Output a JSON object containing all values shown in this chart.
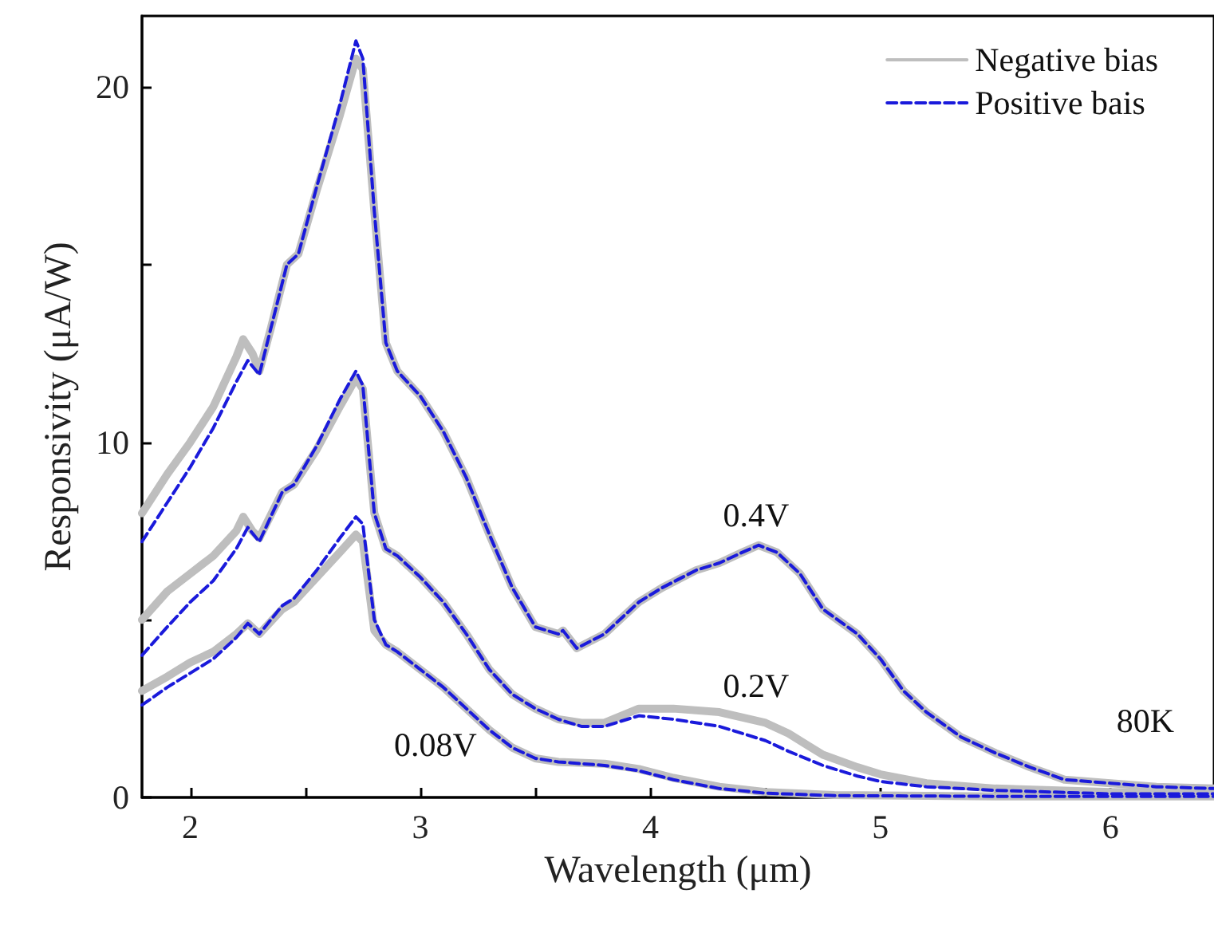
{
  "chart_data": {
    "type": "line",
    "xlabel": "Wavelength (μm)",
    "ylabel": "Responsivity (μA/W)",
    "xlim": [
      1.79,
      6.45
    ],
    "xticks": [
      2,
      {
        "value": 2.5,
        "label": null
      },
      3,
      {
        "value": 3.5,
        "label": null
      },
      4,
      {
        "value": 4.5,
        "label": null
      },
      5,
      {
        "value": 5.5,
        "label": null
      },
      6
    ],
    "ylim": [
      0,
      22
    ],
    "yticks": [
      0,
      {
        "value": 5,
        "label": null
      },
      10,
      {
        "value": 15,
        "label": null
      },
      20
    ],
    "grid": false,
    "legend": "top right",
    "marker": "none",
    "annotations": [
      "0.4V",
      "0.2V",
      "0.08V",
      "80K"
    ],
    "series": [
      {
        "name": "Negative bias",
        "color": "#bebebe",
        "line_style": "solid",
        "x": [
          1.79,
          1.9,
          2.0,
          2.1,
          2.2,
          2.23,
          2.27,
          2.3,
          2.35,
          2.42,
          2.47,
          2.55,
          2.65,
          2.72,
          2.75,
          2.8,
          2.85,
          2.9,
          3.0,
          3.1,
          3.2,
          3.3,
          3.4,
          3.5,
          3.6,
          3.62,
          3.68,
          3.8,
          3.95,
          4.05,
          4.2,
          4.3,
          4.4,
          4.47,
          4.55,
          4.65,
          4.75,
          4.9,
          5.0,
          5.1,
          5.2,
          5.35,
          5.5,
          5.65,
          5.8,
          6.0,
          6.2,
          6.45
        ],
        "values": [
          8.0,
          9.1,
          10.0,
          11.0,
          12.4,
          12.9,
          12.5,
          12.0,
          13.2,
          15.0,
          15.3,
          17.1,
          19.2,
          20.8,
          20.5,
          16.5,
          12.8,
          12.0,
          11.3,
          10.3,
          9.0,
          7.4,
          5.9,
          4.8,
          4.6,
          4.7,
          4.2,
          4.6,
          5.5,
          5.9,
          6.4,
          6.6,
          6.9,
          7.1,
          6.9,
          6.3,
          5.3,
          4.6,
          3.9,
          3.0,
          2.4,
          1.7,
          1.25,
          0.85,
          0.5,
          0.4,
          0.3,
          0.25
        ]
      },
      {
        "name": "Positive bais",
        "color": "#1a1adb",
        "line_style": "dashed",
        "x": [
          1.79,
          1.9,
          2.0,
          2.1,
          2.2,
          2.25,
          2.3,
          2.35,
          2.42,
          2.47,
          2.55,
          2.65,
          2.72,
          2.75,
          2.8,
          2.85,
          2.9,
          3.0,
          3.1,
          3.2,
          3.3,
          3.4,
          3.5,
          3.6,
          3.62,
          3.68,
          3.8,
          3.95,
          4.05,
          4.2,
          4.3,
          4.4,
          4.47,
          4.55,
          4.65,
          4.75,
          4.9,
          5.0,
          5.1,
          5.2,
          5.35,
          5.5,
          5.65,
          5.8,
          6.0,
          6.2,
          6.45
        ],
        "values": [
          7.2,
          8.3,
          9.3,
          10.4,
          11.7,
          12.3,
          11.9,
          13.2,
          15.0,
          15.3,
          17.2,
          19.5,
          21.3,
          20.8,
          16.5,
          12.8,
          12.0,
          11.3,
          10.3,
          9.0,
          7.4,
          5.9,
          4.8,
          4.6,
          4.7,
          4.2,
          4.6,
          5.5,
          5.9,
          6.4,
          6.6,
          6.9,
          7.1,
          6.9,
          6.3,
          5.3,
          4.6,
          3.9,
          3.0,
          2.4,
          1.7,
          1.25,
          0.85,
          0.5,
          0.4,
          0.3,
          0.25
        ]
      },
      {
        "color": "#bebebe",
        "line_style": "solid",
        "x": [
          1.79,
          1.9,
          2.0,
          2.1,
          2.2,
          2.23,
          2.27,
          2.3,
          2.4,
          2.45,
          2.55,
          2.65,
          2.72,
          2.75,
          2.8,
          2.85,
          2.9,
          3.0,
          3.1,
          3.2,
          3.3,
          3.4,
          3.5,
          3.6,
          3.7,
          3.8,
          3.95,
          4.1,
          4.3,
          4.5,
          4.6,
          4.75,
          4.9,
          5.0,
          5.2,
          5.5,
          6.0,
          6.45
        ],
        "values": [
          5.0,
          5.8,
          6.3,
          6.8,
          7.5,
          7.9,
          7.5,
          7.3,
          8.6,
          8.8,
          9.8,
          11.0,
          11.8,
          11.5,
          8.0,
          7.0,
          6.8,
          6.2,
          5.5,
          4.6,
          3.6,
          2.9,
          2.5,
          2.2,
          2.1,
          2.1,
          2.5,
          2.5,
          2.4,
          2.1,
          1.8,
          1.2,
          0.85,
          0.65,
          0.4,
          0.25,
          0.15,
          0.1
        ]
      },
      {
        "color": "#1a1adb",
        "line_style": "dashed",
        "x": [
          1.79,
          1.9,
          2.0,
          2.1,
          2.2,
          2.25,
          2.3,
          2.4,
          2.45,
          2.55,
          2.65,
          2.72,
          2.75,
          2.8,
          2.85,
          2.9,
          3.0,
          3.1,
          3.2,
          3.3,
          3.4,
          3.5,
          3.6,
          3.7,
          3.8,
          3.95,
          4.1,
          4.3,
          4.5,
          4.6,
          4.75,
          4.9,
          5.0,
          5.2,
          5.5,
          6.0,
          6.45
        ],
        "values": [
          4.0,
          4.8,
          5.5,
          6.1,
          7.0,
          7.6,
          7.2,
          8.6,
          8.8,
          9.9,
          11.2,
          12.0,
          11.6,
          8.0,
          7.0,
          6.8,
          6.2,
          5.5,
          4.6,
          3.6,
          2.9,
          2.5,
          2.2,
          2.0,
          2.0,
          2.3,
          2.2,
          2.0,
          1.6,
          1.3,
          0.9,
          0.6,
          0.45,
          0.3,
          0.2,
          0.1,
          0.1
        ]
      },
      {
        "color": "#bebebe",
        "line_style": "solid",
        "x": [
          1.79,
          1.9,
          2.0,
          2.1,
          2.2,
          2.25,
          2.3,
          2.4,
          2.45,
          2.55,
          2.65,
          2.72,
          2.75,
          2.8,
          2.85,
          2.9,
          3.0,
          3.1,
          3.2,
          3.3,
          3.4,
          3.5,
          3.6,
          3.8,
          3.95,
          4.1,
          4.3,
          4.5,
          4.8,
          5.5,
          6.45
        ],
        "values": [
          3.0,
          3.4,
          3.8,
          4.1,
          4.6,
          4.9,
          4.6,
          5.3,
          5.5,
          6.2,
          6.9,
          7.4,
          7.2,
          4.7,
          4.3,
          4.1,
          3.6,
          3.1,
          2.5,
          1.9,
          1.4,
          1.1,
          1.0,
          0.95,
          0.8,
          0.55,
          0.3,
          0.15,
          0.07,
          0.03,
          0.03
        ]
      },
      {
        "color": "#1a1adb",
        "line_style": "dashed",
        "x": [
          1.79,
          1.9,
          2.0,
          2.1,
          2.2,
          2.25,
          2.3,
          2.4,
          2.45,
          2.55,
          2.65,
          2.72,
          2.75,
          2.8,
          2.85,
          2.9,
          3.0,
          3.1,
          3.2,
          3.3,
          3.4,
          3.5,
          3.6,
          3.8,
          3.95,
          4.1,
          4.3,
          4.5,
          4.8,
          5.5,
          6.45
        ],
        "values": [
          2.6,
          3.1,
          3.5,
          3.9,
          4.5,
          4.9,
          4.6,
          5.4,
          5.6,
          6.4,
          7.3,
          7.9,
          7.7,
          5.0,
          4.3,
          4.1,
          3.6,
          3.1,
          2.5,
          1.9,
          1.4,
          1.1,
          1.0,
          0.9,
          0.75,
          0.5,
          0.25,
          0.12,
          0.05,
          0.03,
          0.03
        ]
      }
    ]
  }
}
